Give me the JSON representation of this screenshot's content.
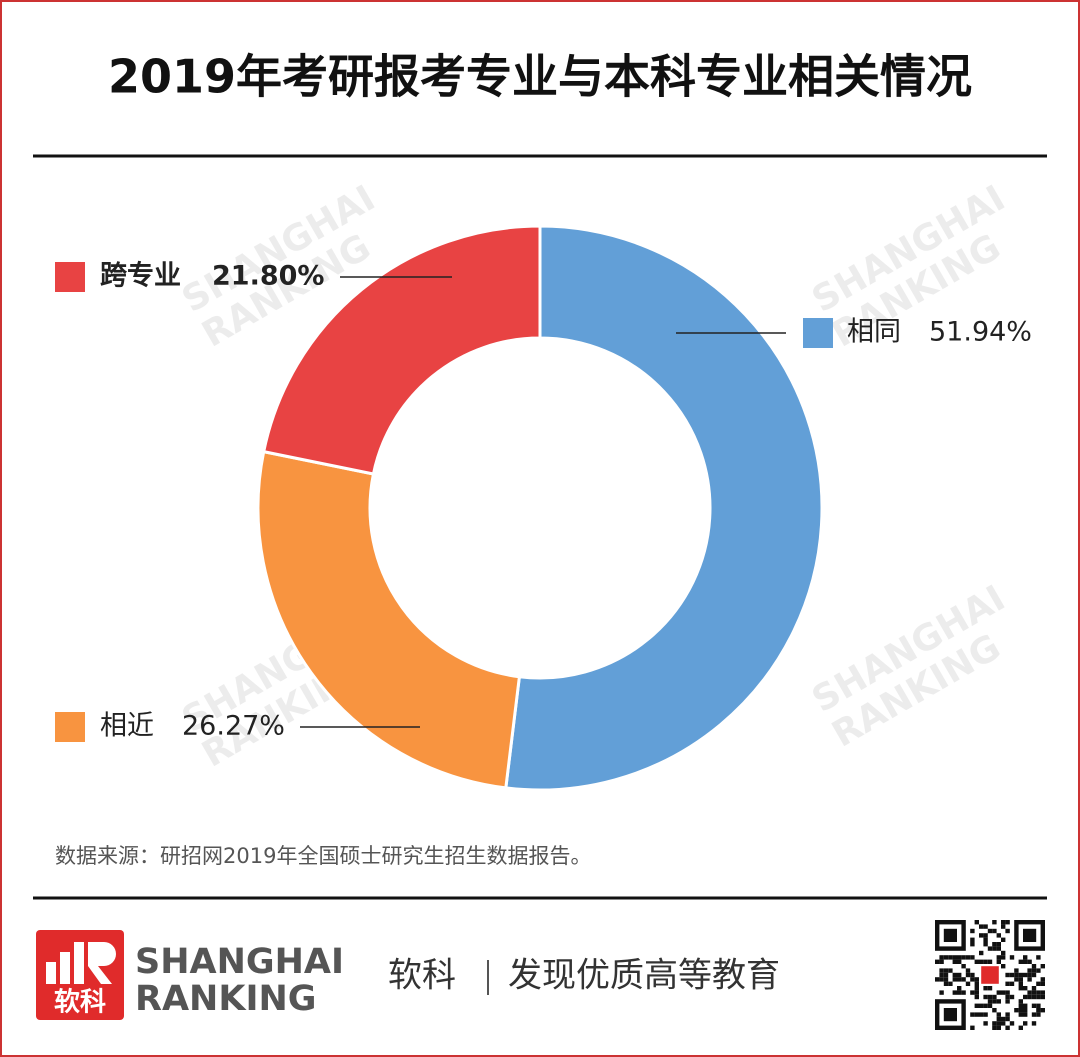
{
  "chart_data": {
    "type": "donut",
    "title": "2019年考研报考专业与本科专业相关情况",
    "categories": [
      "相同",
      "相近",
      "跨专业"
    ],
    "values": [
      51.94,
      26.27,
      21.8
    ],
    "value_labels": [
      "51.94%",
      "26.27%",
      "21.80%"
    ],
    "colors": [
      "#629fd7",
      "#f89440",
      "#e84343"
    ],
    "source": "数据来源：研招网2019年全国硕士研究生招生数据报告。",
    "watermark": [
      "SHANGHAI",
      "RANKING"
    ]
  },
  "footer": {
    "brand_cn": "软科",
    "brand_en": [
      "SHANGHAI",
      "RANKING"
    ],
    "slogan": "发现优质高等教育"
  }
}
